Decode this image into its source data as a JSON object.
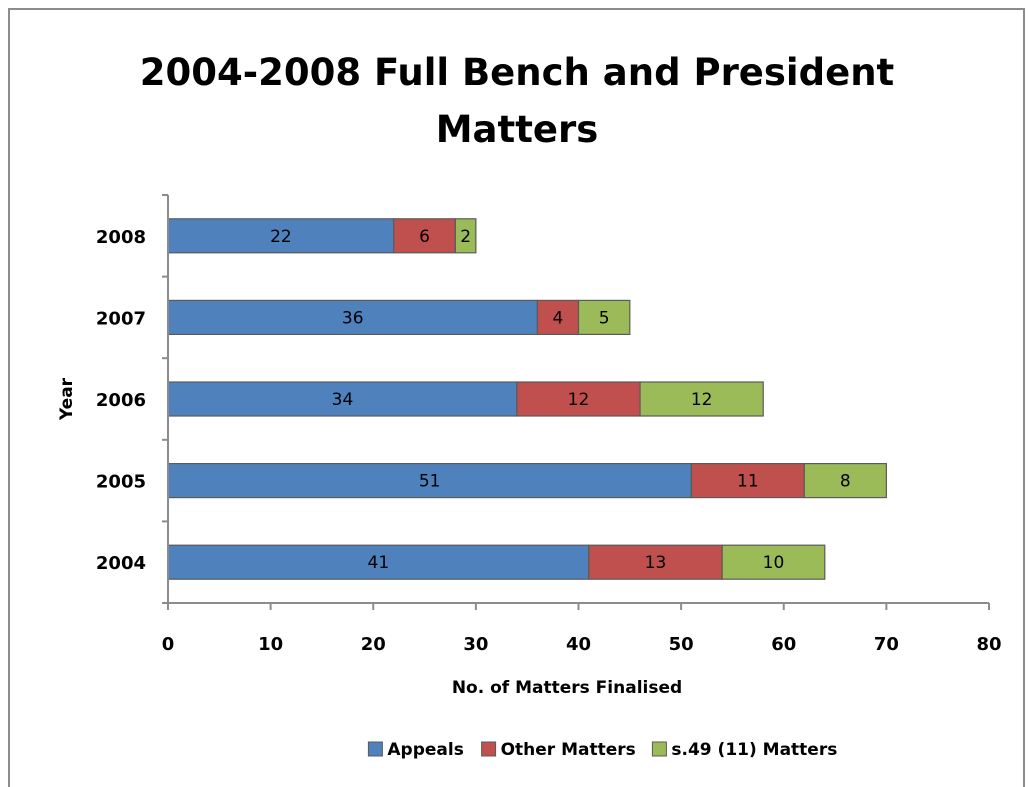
{
  "chart_data": {
    "type": "bar",
    "orientation": "horizontal",
    "stacked": true,
    "title": "2004-2008 Full Bench and President Matters",
    "title_lines": [
      "2004-2008 Full Bench and President",
      "Matters"
    ],
    "xlabel": "No. of Matters Finalised",
    "ylabel": "Year",
    "xlim": [
      0,
      80
    ],
    "xticks": [
      "0",
      "10",
      "20",
      "30",
      "40",
      "50",
      "60",
      "70",
      "80"
    ],
    "categories": [
      "2004",
      "2005",
      "2006",
      "2007",
      "2008"
    ],
    "series": [
      {
        "name": "Appeals",
        "color": "#4f81bd",
        "values": [
          41,
          51,
          34,
          36,
          22
        ]
      },
      {
        "name": "Other Matters",
        "color": "#c0504d",
        "values": [
          13,
          11,
          12,
          4,
          6
        ]
      },
      {
        "name": "s.49 (11) Matters",
        "color": "#9bbb59",
        "values": [
          10,
          8,
          12,
          5,
          2
        ]
      }
    ],
    "data_labels": true,
    "grid": false,
    "legend_position": "bottom"
  }
}
